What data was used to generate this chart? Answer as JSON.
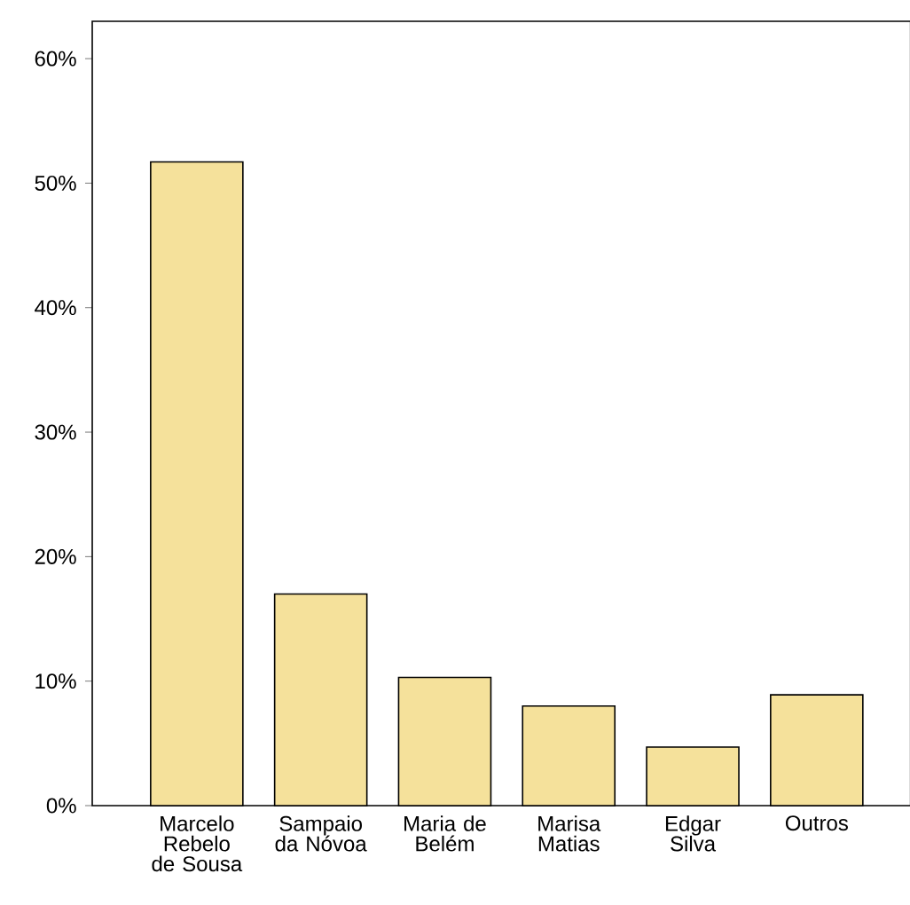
{
  "chart_data": {
    "type": "bar",
    "categories": [
      "Marcelo Rebelo de Sousa",
      "Sampaio da Nóvoa",
      "Maria de Belém",
      "Marisa Matias",
      "Edgar Silva",
      "Outros"
    ],
    "values": [
      51.7,
      17.0,
      10.3,
      8.0,
      4.7,
      8.9
    ],
    "color": "#f5e19b",
    "ylim": [
      0,
      63
    ],
    "yticks": [
      {
        "value": 0,
        "label": "0%"
      },
      {
        "value": 10,
        "label": "10%"
      },
      {
        "value": 20,
        "label": "20%"
      },
      {
        "value": 30,
        "label": "30%"
      },
      {
        "value": 40,
        "label": "40%"
      },
      {
        "value": 50,
        "label": "50%"
      },
      {
        "value": 60,
        "label": "60%"
      }
    ],
    "grid": false
  }
}
